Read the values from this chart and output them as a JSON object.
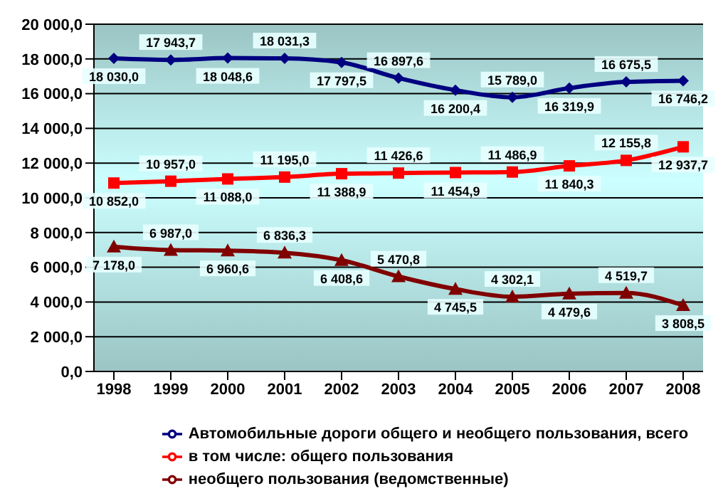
{
  "chart_data": {
    "type": "line",
    "categories": [
      "1998",
      "1999",
      "2000",
      "2001",
      "2002",
      "2003",
      "2004",
      "2005",
      "2006",
      "2007",
      "2008"
    ],
    "series": [
      {
        "name": "Автомобильные дороги общего и необщего пользования, всего",
        "color": "#000080",
        "marker": "diamond",
        "values": [
          18030.0,
          17943.7,
          18048.6,
          18031.3,
          17797.5,
          16897.6,
          16200.4,
          15789.0,
          16319.9,
          16675.5,
          16746.2
        ],
        "value_labels": [
          "18 030,0",
          "17 943,7",
          "18 048,6",
          "18 031,3",
          "17 797,5",
          "16 897,6",
          "16 200,4",
          "15 789,0",
          "16 319,9",
          "16 675,5",
          "16 746,2"
        ]
      },
      {
        "name": "в том числе: общего пользования",
        "color": "#ff0000",
        "marker": "square",
        "values": [
          10852.0,
          10957.0,
          11088.0,
          11195.0,
          11388.9,
          11426.6,
          11454.9,
          11486.9,
          11840.3,
          12155.8,
          12937.7
        ],
        "value_labels": [
          "10 852,0",
          "10 957,0",
          "11 088,0",
          "11 195,0",
          "11 388,9",
          "11 426,6",
          "11 454,9",
          "11 486,9",
          "11 840,3",
          "12 155,8",
          "12 937,7"
        ]
      },
      {
        "name": "необщего пользования (ведомственные)",
        "color": "#800000",
        "marker": "triangle",
        "values": [
          7178.0,
          6987.0,
          6960.6,
          6836.3,
          6408.6,
          5470.8,
          4745.5,
          4302.1,
          4479.6,
          4519.7,
          3808.5
        ],
        "value_labels": [
          "7 178,0",
          "6 987,0",
          "6 960,6",
          "6 836,3",
          "6 408,6",
          "5 470,8",
          "4 745,5",
          "4 302,1",
          "4 479,6",
          "4 519,7",
          "3 808,5"
        ]
      }
    ],
    "ylim": [
      0,
      20000
    ],
    "yticks": [
      {
        "value": 0,
        "label": "0,0"
      },
      {
        "value": 2000,
        "label": "2 000,0"
      },
      {
        "value": 4000,
        "label": "4 000,0"
      },
      {
        "value": 6000,
        "label": "6 000,0"
      },
      {
        "value": 8000,
        "label": "8 000,0"
      },
      {
        "value": 10000,
        "label": "10 000,0"
      },
      {
        "value": 12000,
        "label": "12 000,0"
      },
      {
        "value": 14000,
        "label": "14 000,0"
      },
      {
        "value": 16000,
        "label": "16 000,0"
      },
      {
        "value": 18000,
        "label": "18 000,0"
      },
      {
        "value": 20000,
        "label": "20 000,0"
      }
    ],
    "grid": "y",
    "legend": "bottom",
    "line_style": "solid"
  }
}
